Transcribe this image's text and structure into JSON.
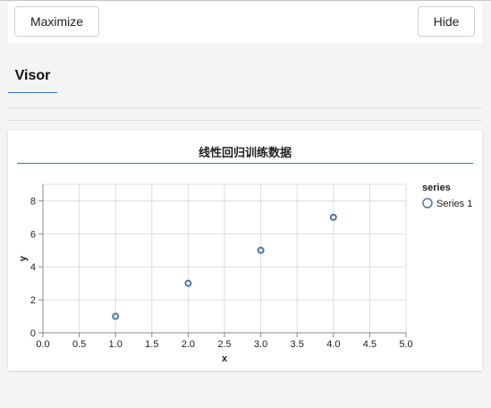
{
  "toolbar": {
    "maximize_label": "Maximize",
    "hide_label": "Hide"
  },
  "tabs": [
    {
      "label": "Visor"
    }
  ],
  "card": {
    "title": "线性回归训练数据"
  },
  "colors": {
    "accent": "#3b73c4",
    "point": "#4c78a8"
  },
  "chart_data": {
    "type": "scatter",
    "title": "线性回归训练数据",
    "xlabel": "x",
    "ylabel": "y",
    "xlim": [
      0,
      5
    ],
    "ylim": [
      0,
      9
    ],
    "x_ticks": [
      "0.0",
      "0.5",
      "1.0",
      "1.5",
      "2.0",
      "2.5",
      "3.0",
      "3.5",
      "4.0",
      "4.5",
      "5.0"
    ],
    "y_ticks": [
      "0",
      "2",
      "4",
      "6",
      "8"
    ],
    "grid": true,
    "legend": {
      "title": "series",
      "placement": "right"
    },
    "series": [
      {
        "name": "Series 1",
        "x": [
          1,
          2,
          3,
          4
        ],
        "y": [
          1,
          3,
          5,
          7
        ]
      }
    ]
  }
}
